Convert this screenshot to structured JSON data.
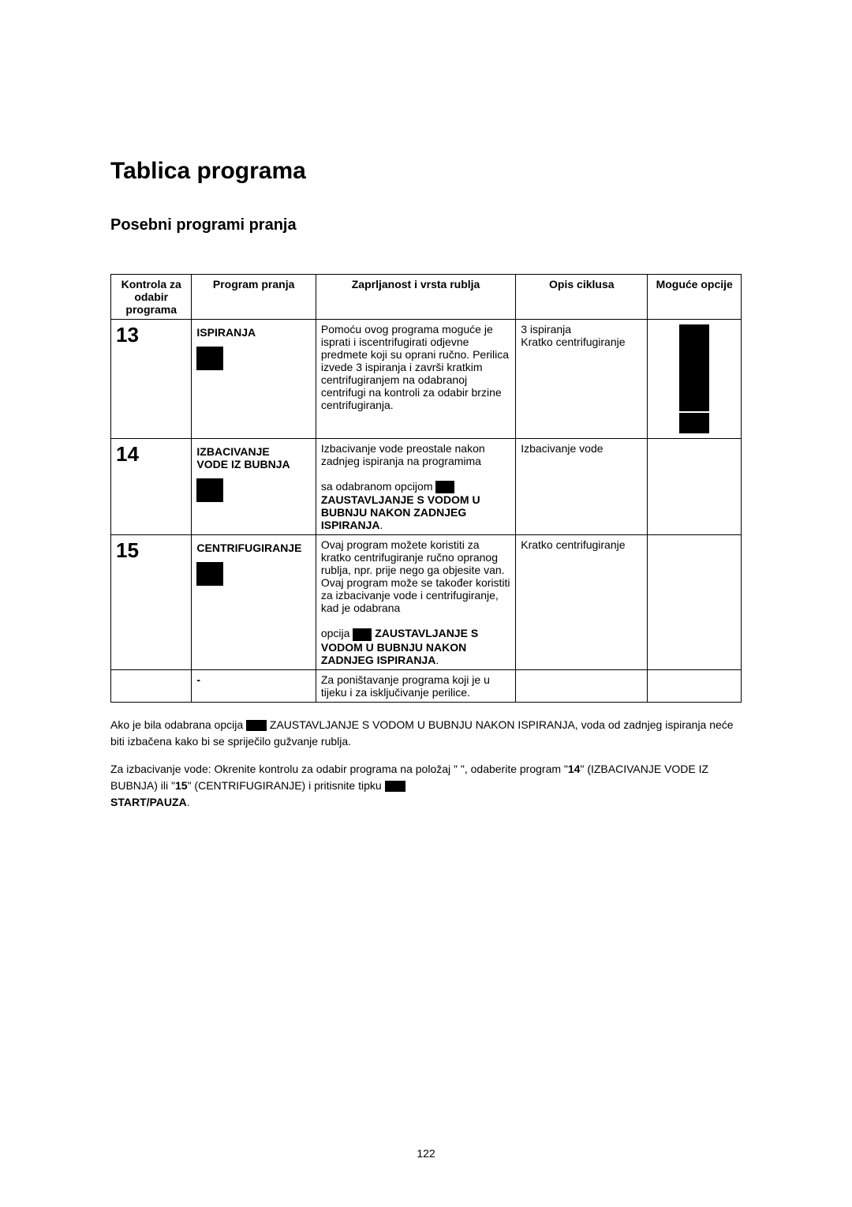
{
  "title": "Tablica programa",
  "subtitle": "Posebni programi pranja",
  "headers": {
    "kontrola": "Kontrola za odabir programa",
    "program": "Program pranja",
    "zaprljanost": "Zaprljanost i vrsta rublja",
    "opis": "Opis ciklusa",
    "moguce": "Moguće opcije"
  },
  "rows": {
    "r1": {
      "num": "13",
      "prog": "ISPIRANJA",
      "zapr": "Pomoću ovog programa moguće je isprati i iscentrifugirati odjevne predmete koji su oprani ručno. Perilica izvede 3 ispiranja i završi kratkim centrifugiranjem na odabranoj centrifugi na kontroli za odabir brzine centrifugiranja.",
      "opis_l1": "3 ispiranja",
      "opis_l2": "Kratko centrifugiranje"
    },
    "r2": {
      "num": "14",
      "prog_l1": "IZBACIVANJE",
      "prog_l2": "VODE IZ BUBNJA",
      "zapr_p1": "Izbacivanje vode preostale nakon zadnjeg ispiranja na programima",
      "zapr_p2a": "sa odabranom opcijom ",
      "zapr_p2b": "ZAUSTAVLJANJE S VODOM U BUBNJU NAKON ZADNJEG ISPIRANJA",
      "opis": "Izbacivanje vode"
    },
    "r3": {
      "num": "15",
      "prog": "CENTRIFUGIRANJE",
      "zapr_p1": "Ovaj program možete koristiti za kratko centrifugiranje ručno opranog rublja, npr. prije nego ga objesite van.",
      "zapr_p2": "Ovaj program može se također koristiti za izbacivanje vode i centrifugiranje, kad je odabrana",
      "zapr_p3a": "opcija ",
      "zapr_p3b": " ZAUSTAVLJANJE S VODOM U BUBNJU NAKON ZADNJEG ISPIRANJA",
      "opis": "Kratko centrifugiranje"
    },
    "r4": {
      "prog": "-",
      "zapr": "Za poništavanje programa koji je u tijeku i za isključivanje perilice."
    }
  },
  "below": {
    "p1a": "Ako je bila odabrana opcija ",
    "p1b": " ZAUSTAVLJANJE S VODOM U BUBNJU NAKON ISPIRANJA, voda od zadnjeg ispiranja neće biti izbačena kako bi se spriječilo gužvanje rublja.",
    "p2a": "Za izbacivanje vode: Okrenite kontrolu za odabir programa na položaj \"      \", odaberite program \"",
    "p2b": "14",
    "p2c": "\" (IZBACIVANJE VODE IZ BUBNJA) ili \"",
    "p2d": "15",
    "p2e": "\" (CENTRIFUGIRANJE) i pritisnite tipku ",
    "p2f": "START/PAUZA",
    "p2g": "."
  },
  "page_number": "122"
}
